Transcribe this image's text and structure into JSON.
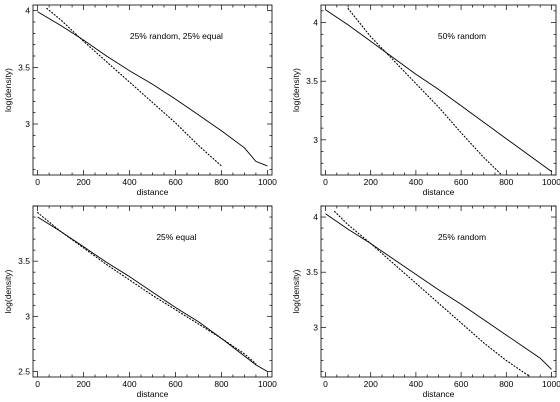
{
  "chart_data": [
    {
      "type": "line",
      "annotation": "25% random, 25% equal",
      "xlabel": "distance",
      "ylabel": "log(density)",
      "xlim": [
        -20,
        1020
      ],
      "ylim": [
        2.55,
        4.05
      ],
      "xticks": [
        0,
        200,
        400,
        600,
        800,
        1000
      ],
      "yticks": [
        3,
        3.5,
        4
      ],
      "series": [
        {
          "style": "solid",
          "x": [
            0,
            100,
            200,
            300,
            400,
            500,
            600,
            700,
            800,
            900,
            950,
            1000
          ],
          "y": [
            3.99,
            3.87,
            3.74,
            3.6,
            3.47,
            3.35,
            3.22,
            3.08,
            2.94,
            2.79,
            2.67,
            2.63
          ]
        },
        {
          "style": "dotted",
          "x": [
            40,
            100,
            200,
            300,
            400,
            500,
            600,
            700,
            800
          ],
          "y": [
            4.02,
            3.92,
            3.73,
            3.55,
            3.37,
            3.19,
            3.01,
            2.81,
            2.63
          ]
        }
      ]
    },
    {
      "type": "line",
      "annotation": "50% random",
      "xlabel": "distance",
      "ylabel": "log(density)",
      "xlim": [
        -20,
        1020
      ],
      "ylim": [
        2.7,
        4.15
      ],
      "xticks": [
        0,
        200,
        400,
        600,
        800,
        1000
      ],
      "yticks": [
        3,
        3.5,
        4
      ],
      "series": [
        {
          "style": "solid",
          "x": [
            0,
            100,
            200,
            300,
            400,
            500,
            600,
            700,
            800,
            900,
            1000
          ],
          "y": [
            4.11,
            3.98,
            3.84,
            3.7,
            3.56,
            3.43,
            3.29,
            3.15,
            3.01,
            2.87,
            2.73
          ]
        },
        {
          "style": "dotted",
          "x": [
            100,
            200,
            300,
            400,
            500,
            600,
            700,
            780
          ],
          "y": [
            4.12,
            3.88,
            3.68,
            3.48,
            3.28,
            3.06,
            2.85,
            2.7
          ]
        }
      ]
    },
    {
      "type": "line",
      "annotation": "25% equal",
      "xlabel": "distance",
      "ylabel": "log(density)",
      "xlim": [
        -20,
        1020
      ],
      "ylim": [
        2.45,
        4.0
      ],
      "xticks": [
        0,
        200,
        400,
        600,
        800,
        1000
      ],
      "yticks": [
        2.5,
        3,
        3.5
      ],
      "series": [
        {
          "style": "solid",
          "x": [
            0,
            100,
            200,
            300,
            400,
            500,
            600,
            700,
            800,
            900,
            950,
            1000
          ],
          "y": [
            3.9,
            3.77,
            3.63,
            3.49,
            3.36,
            3.22,
            3.08,
            2.95,
            2.8,
            2.64,
            2.56,
            2.5
          ]
        },
        {
          "style": "dotted",
          "x": [
            0,
            100,
            200,
            300,
            400,
            500,
            600,
            700,
            800,
            900,
            950
          ],
          "y": [
            3.94,
            3.77,
            3.62,
            3.47,
            3.33,
            3.19,
            3.06,
            2.93,
            2.8,
            2.66,
            2.57
          ]
        }
      ]
    },
    {
      "type": "line",
      "annotation": "25% random",
      "xlabel": "distance",
      "ylabel": "log(density)",
      "xlim": [
        -20,
        1020
      ],
      "ylim": [
        2.55,
        4.1
      ],
      "xticks": [
        0,
        200,
        400,
        600,
        800,
        1000
      ],
      "yticks": [
        3,
        3.5,
        4
      ],
      "series": [
        {
          "style": "solid",
          "x": [
            0,
            100,
            200,
            300,
            400,
            500,
            600,
            700,
            800,
            900,
            950,
            1000
          ],
          "y": [
            4.03,
            3.89,
            3.76,
            3.62,
            3.48,
            3.34,
            3.21,
            3.07,
            2.93,
            2.79,
            2.72,
            2.62
          ]
        },
        {
          "style": "dotted",
          "x": [
            40,
            100,
            200,
            300,
            400,
            500,
            600,
            700,
            800,
            900
          ],
          "y": [
            4.05,
            3.93,
            3.76,
            3.58,
            3.4,
            3.22,
            3.04,
            2.86,
            2.7,
            2.56
          ]
        }
      ]
    }
  ]
}
